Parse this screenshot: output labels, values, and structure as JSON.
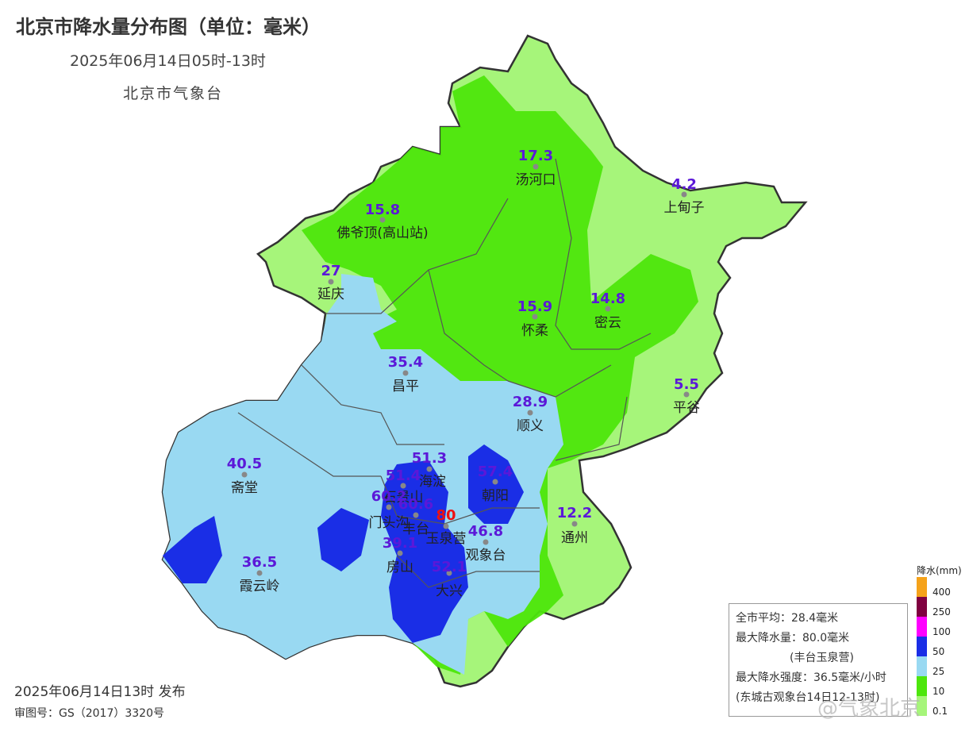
{
  "title": "北京市降水量分布图（单位：毫米）",
  "subtitle": "2025年06月14日05时-13时",
  "agency": "北京市气象台",
  "issued": "2025年06月14日13时 发布",
  "review_no": "审图号：GS（2017）3320号",
  "stats": {
    "avg": "全市平均：28.4毫米",
    "max": "最大降水量：80.0毫米",
    "max_site": "(丰台玉泉营)",
    "intensity": "最大降水强度：36.5毫米/小时",
    "intensity_site": "(东城古观象台14日12-13时)"
  },
  "legend": {
    "title": "降水(mm)",
    "labels": [
      "400",
      "250",
      "100",
      "50",
      "25",
      "10",
      "0.1"
    ],
    "colors": [
      "#f5a21a",
      "#800040",
      "#ff00ff",
      "#1a2ee6",
      "#99d9f2",
      "#4de60c",
      "#a6f57a"
    ]
  },
  "watermark": "@气象北京",
  "stations": [
    {
      "value": "17.3",
      "name": "汤河口"
    },
    {
      "value": "4.2",
      "name": "上甸子"
    },
    {
      "value": "15.8",
      "name": "佛爷顶(高山站)"
    },
    {
      "value": "27",
      "name": "延庆"
    },
    {
      "value": "15.9",
      "name": "怀柔"
    },
    {
      "value": "14.8",
      "name": "密云"
    },
    {
      "value": "35.4",
      "name": "昌平"
    },
    {
      "value": "5.5",
      "name": "平谷"
    },
    {
      "value": "28.9",
      "name": "顺义"
    },
    {
      "value": "40.5",
      "name": "斋堂"
    },
    {
      "value": "51.3",
      "name": "海淀"
    },
    {
      "value": "51.4",
      "name": "石景山"
    },
    {
      "value": "57.4",
      "name": "朝阳"
    },
    {
      "value": "60.2",
      "name": "门头沟"
    },
    {
      "value": "60.6",
      "name": "丰台"
    },
    {
      "value": "80",
      "name": "玉泉营"
    },
    {
      "value": "46.8",
      "name": "观象台"
    },
    {
      "value": "12.2",
      "name": "通州"
    },
    {
      "value": "39.1",
      "name": "房山"
    },
    {
      "value": "36.5",
      "name": "霞云岭"
    },
    {
      "value": "52.1",
      "name": "大兴"
    }
  ]
}
